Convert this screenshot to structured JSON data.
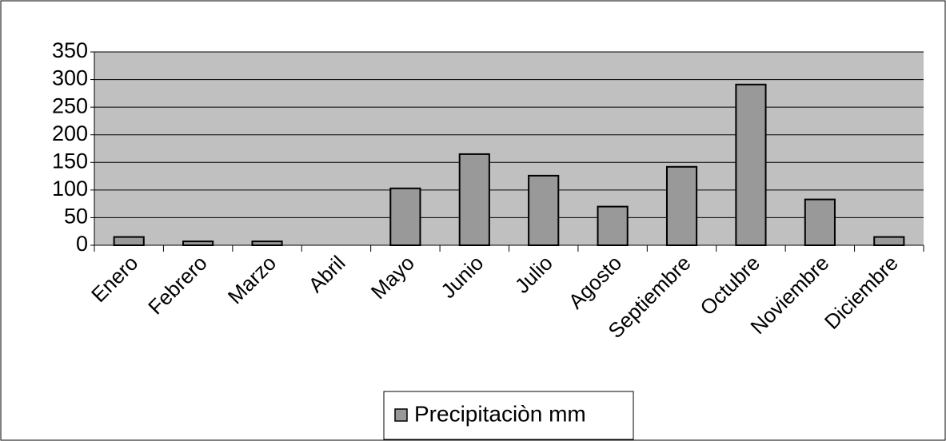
{
  "chart_data": {
    "type": "bar",
    "categories": [
      "Enero",
      "Febrero",
      "Marzo",
      "Abril",
      "Mayo",
      "Junio",
      "Julio",
      "Agosto",
      "Septiembre",
      "Octubre",
      "Noviembre",
      "Diciembre"
    ],
    "series": [
      {
        "name": "Precipitaciòn mm",
        "color": "#999999",
        "values": [
          15,
          7,
          7,
          0,
          103,
          165,
          126,
          70,
          142,
          291,
          83,
          15
        ]
      }
    ],
    "ylim": [
      0,
      350
    ],
    "yticks": [
      0,
      50,
      100,
      150,
      200,
      250,
      300,
      350
    ],
    "grid": true,
    "legend": "bottom"
  }
}
